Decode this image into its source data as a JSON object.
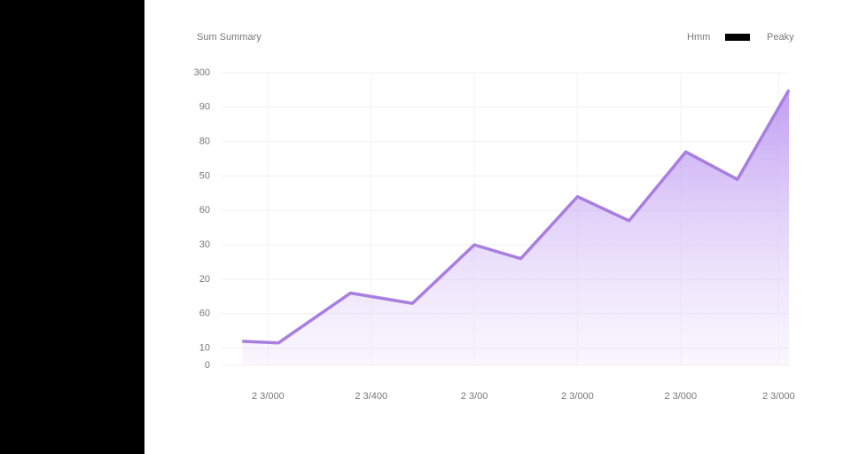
{
  "chart_data": {
    "type": "area",
    "title": "Sum Summary",
    "legend_title": "Hmm",
    "x": [
      4,
      11,
      25,
      37,
      49,
      58,
      69,
      79,
      90,
      100,
      110
    ],
    "series": [
      {
        "name": "Peaky",
        "color": "#a87ee0",
        "values": [
          7,
          6.5,
          21,
          18,
          35,
          31,
          49,
          42,
          62,
          54,
          80
        ]
      }
    ],
    "xlim": [
      0,
      110
    ],
    "xticks": [
      {
        "value": 9,
        "label": "2 3/000"
      },
      {
        "value": 29,
        "label": "2 3/400"
      },
      {
        "value": 49,
        "label": "2 3/00"
      },
      {
        "value": 69,
        "label": "2 3/000"
      },
      {
        "value": 89,
        "label": "2 3/000"
      },
      {
        "value": 108,
        "label": "2 3/000"
      }
    ],
    "ylim": [
      0,
      85
    ],
    "yticks": [
      0,
      {
        "value": 5,
        "label": "10"
      },
      {
        "value": 15,
        "label": "60"
      },
      {
        "value": 25,
        "label": "20"
      },
      {
        "value": 35,
        "label": "30"
      },
      {
        "value": 45,
        "label": "60"
      },
      {
        "value": 55,
        "label": "50"
      },
      {
        "value": 65,
        "label": "80"
      },
      {
        "value": 75,
        "label": "90"
      },
      {
        "value": 85,
        "label": "300"
      }
    ],
    "grid": true
  }
}
